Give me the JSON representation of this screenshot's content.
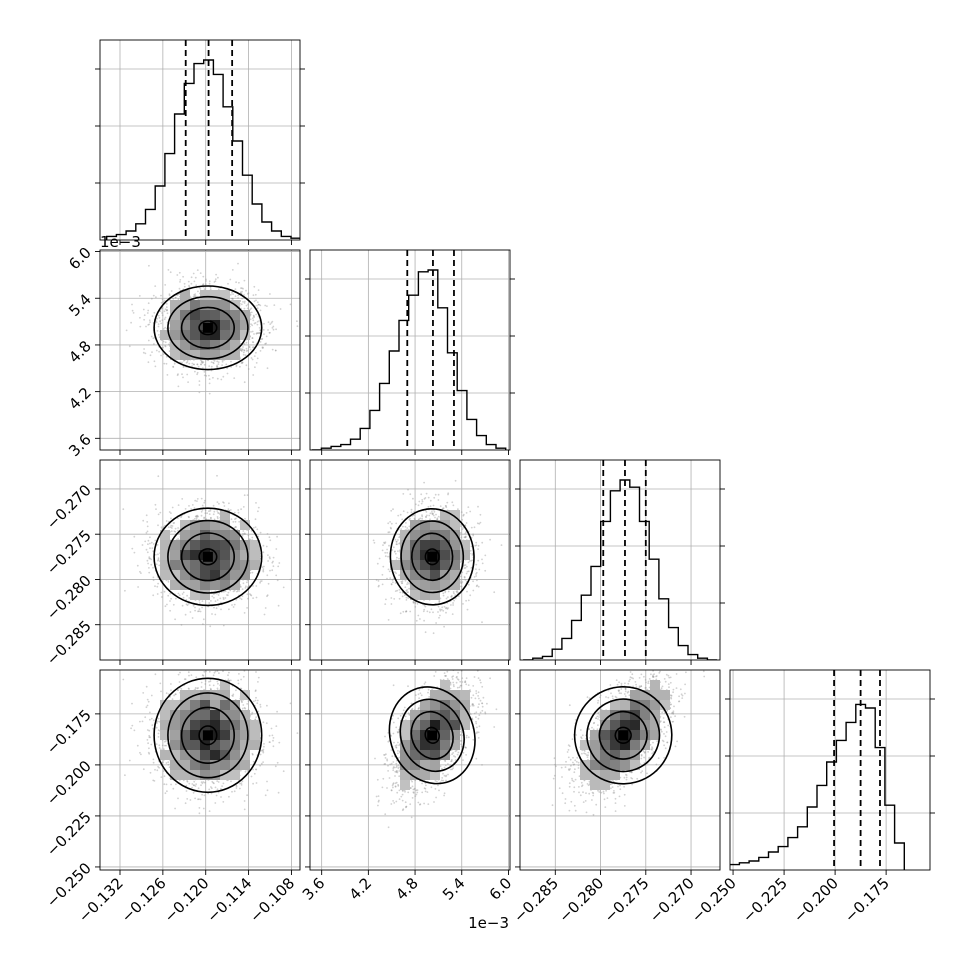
{
  "chart_data": {
    "type": "corner",
    "grid": true,
    "parameters": [
      {
        "ticks": [
          -0.132,
          -0.126,
          -0.12,
          -0.114,
          -0.108
        ],
        "tick_labels": [
          "−0.132",
          "−0.126",
          "−0.120",
          "−0.114",
          "−0.108"
        ],
        "range": [
          -0.1348,
          -0.1068
        ],
        "exponent_label": ""
      },
      {
        "ticks": [
          3.6,
          4.2,
          4.8,
          5.4,
          6.0
        ],
        "tick_labels": [
          "3.6",
          "4.2",
          "4.8",
          "5.4",
          "6.0"
        ],
        "range": [
          3.45,
          6.02
        ],
        "exponent_label": "1e−3"
      },
      {
        "ticks": [
          -0.285,
          -0.28,
          -0.275,
          -0.27
        ],
        "tick_labels": [
          "−0.285",
          "−0.280",
          "−0.275",
          "−0.270"
        ],
        "range": [
          -0.2889,
          -0.2668
        ],
        "exponent_label": ""
      },
      {
        "ticks": [
          -0.25,
          -0.225,
          -0.2,
          -0.175
        ],
        "tick_labels": [
          "−0.250",
          "−0.225",
          "−0.200",
          "−0.175"
        ],
        "range": [
          -0.2515,
          -0.1535
        ],
        "exponent_label": ""
      }
    ],
    "histograms": [
      {
        "counts": [
          0.02,
          0.03,
          0.05,
          0.09,
          0.17,
          0.3,
          0.48,
          0.7,
          0.87,
          0.98,
          1.0,
          0.92,
          0.74,
          0.55,
          0.36,
          0.2,
          0.1,
          0.05,
          0.02,
          0.01
        ],
        "quantiles": [
          -0.1228,
          -0.1196,
          -0.1163
        ]
      },
      {
        "counts": [
          0.0,
          0.01,
          0.02,
          0.03,
          0.06,
          0.12,
          0.22,
          0.37,
          0.55,
          0.72,
          0.86,
          0.99,
          1.0,
          0.79,
          0.54,
          0.33,
          0.17,
          0.08,
          0.03,
          0.01
        ],
        "quantiles": [
          4.7,
          5.03,
          5.3
        ]
      },
      {
        "counts": [
          0.0,
          0.01,
          0.02,
          0.06,
          0.12,
          0.22,
          0.36,
          0.52,
          0.77,
          0.94,
          1.0,
          0.96,
          0.77,
          0.56,
          0.34,
          0.18,
          0.08,
          0.03,
          0.01,
          0.0
        ],
        "quantiles": [
          -0.2797,
          -0.2773,
          -0.275
        ]
      },
      {
        "counts": [
          0.01,
          0.02,
          0.03,
          0.04,
          0.05,
          0.07,
          0.1,
          0.13,
          0.18,
          0.24,
          0.35,
          0.47,
          0.6,
          0.72,
          0.82,
          0.92,
          0.9,
          0.68,
          0.36,
          0.15
        ],
        "quantiles": [
          -0.2005,
          -0.1875,
          -0.178
        ]
      }
    ],
    "panels_2d": [
      {
        "x_param": 0,
        "y_param": 1,
        "center": [
          -0.1197,
          5.02
        ],
        "sigma": [
          0.0035,
          0.25
        ],
        "rho": 0.0
      },
      {
        "x_param": 0,
        "y_param": 2,
        "center": [
          -0.1197,
          -0.2775
        ],
        "sigma": [
          0.0035,
          0.0025
        ],
        "rho": 0.0
      },
      {
        "x_param": 1,
        "y_param": 2,
        "center": [
          5.02,
          -0.2775
        ],
        "sigma": [
          0.25,
          0.0025
        ],
        "rho": 0.05
      },
      {
        "x_param": 0,
        "y_param": 3,
        "center": [
          -0.1197,
          -0.1855
        ],
        "sigma": [
          0.0035,
          0.013
        ],
        "rho": 0.0
      },
      {
        "x_param": 1,
        "y_param": 3,
        "center": [
          5.02,
          -0.1855
        ],
        "sigma": [
          0.25,
          0.013
        ],
        "rho": 0.55
      },
      {
        "x_param": 2,
        "y_param": 3,
        "center": [
          -0.2775,
          -0.1855
        ],
        "sigma": [
          0.0025,
          0.013
        ],
        "rho": 0.6
      }
    ]
  }
}
